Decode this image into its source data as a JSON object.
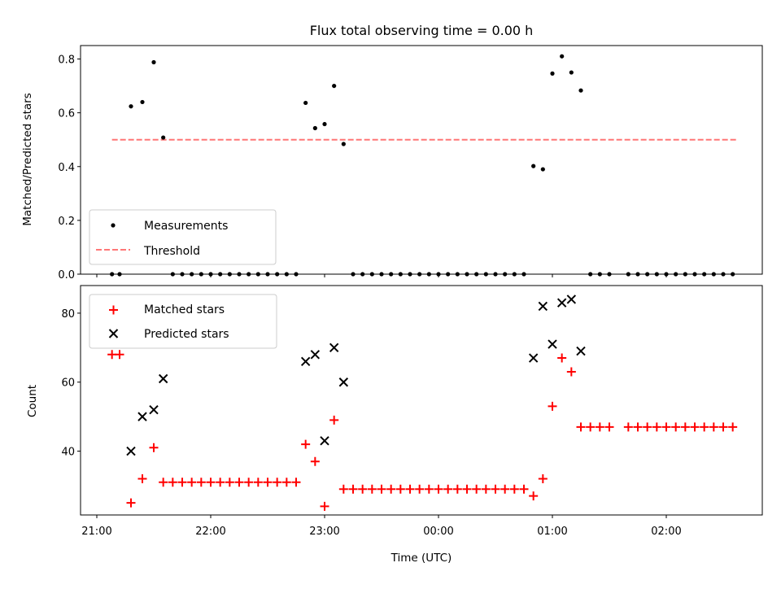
{
  "chart_data": [
    {
      "type": "scatter",
      "title": "Flux total observing time = 0.00 h",
      "xlabel": "",
      "ylabel": "Matched/Predicted stars",
      "ylim": [
        0,
        0.85
      ],
      "yticks": [
        "0.0",
        "0.2",
        "0.4",
        "0.6",
        "0.8"
      ],
      "legend_placement": "lower-left",
      "series": [
        {
          "name": "Measurements",
          "color": "#000000",
          "marker": "dot",
          "x": [
            "21:08",
            "21:12",
            "21:18",
            "21:24",
            "21:30",
            "21:35",
            "21:40",
            "21:45",
            "21:50",
            "21:55",
            "22:00",
            "22:05",
            "22:10",
            "22:15",
            "22:20",
            "22:25",
            "22:30",
            "22:35",
            "22:40",
            "22:45",
            "22:50",
            "22:55",
            "23:00",
            "23:05",
            "23:10",
            "23:15",
            "23:20",
            "23:25",
            "23:30",
            "23:35",
            "23:40",
            "23:45",
            "23:50",
            "23:55",
            "00:00",
            "00:05",
            "00:10",
            "00:15",
            "00:20",
            "00:25",
            "00:30",
            "00:35",
            "00:40",
            "00:45",
            "00:50",
            "00:55",
            "01:00",
            "01:05",
            "01:10",
            "01:15",
            "01:20",
            "01:25",
            "01:30",
            "01:40",
            "01:45",
            "01:50",
            "01:55",
            "02:00",
            "02:05",
            "02:10",
            "02:15",
            "02:20",
            "02:25",
            "02:30",
            "02:35"
          ],
          "y": [
            0,
            0,
            0.624,
            0.64,
            0.788,
            0.508,
            0,
            0,
            0,
            0,
            0,
            0,
            0,
            0,
            0,
            0,
            0,
            0,
            0,
            0,
            0.637,
            0.543,
            0.558,
            0.7,
            0.484,
            0,
            0,
            0,
            0,
            0,
            0,
            0,
            0,
            0,
            0,
            0,
            0,
            0,
            0,
            0,
            0,
            0,
            0,
            0,
            0.402,
            0.39,
            0.746,
            0.81,
            0.75,
            0.683,
            0,
            0,
            0,
            0,
            0,
            0,
            0,
            0,
            0,
            0,
            0,
            0,
            0,
            0,
            0
          ]
        },
        {
          "name": "Threshold",
          "color": "#ff7777",
          "style": "dashed",
          "x": [
            "21:08",
            "02:37"
          ],
          "y": [
            0.5,
            0.5
          ]
        }
      ]
    },
    {
      "type": "scatter",
      "title": "",
      "xlabel": "Time (UTC)",
      "ylabel": "Count",
      "ylim": [
        21.5,
        88
      ],
      "yticks": [
        "40",
        "60",
        "80"
      ],
      "xticks": [
        "21:00",
        "22:00",
        "23:00",
        "00:00",
        "01:00",
        "02:00"
      ],
      "legend_placement": "upper-left",
      "series": [
        {
          "name": "Matched stars",
          "color": "#ff0000",
          "marker": "plus",
          "x": [
            "21:08",
            "21:12",
            "21:18",
            "21:24",
            "21:30",
            "21:35",
            "21:40",
            "21:45",
            "21:50",
            "21:55",
            "22:00",
            "22:05",
            "22:10",
            "22:15",
            "22:20",
            "22:25",
            "22:30",
            "22:35",
            "22:40",
            "22:45",
            "22:50",
            "22:55",
            "23:00",
            "23:05",
            "23:10",
            "23:15",
            "23:20",
            "23:25",
            "23:30",
            "23:35",
            "23:40",
            "23:45",
            "23:50",
            "23:55",
            "00:00",
            "00:05",
            "00:10",
            "00:15",
            "00:20",
            "00:25",
            "00:30",
            "00:35",
            "00:40",
            "00:45",
            "00:50",
            "00:55",
            "01:00",
            "01:05",
            "01:10",
            "01:15",
            "01:20",
            "01:25",
            "01:30",
            "01:40",
            "01:45",
            "01:50",
            "01:55",
            "02:00",
            "02:05",
            "02:10",
            "02:15",
            "02:20",
            "02:25",
            "02:30",
            "02:35"
          ],
          "y": [
            68,
            68,
            25,
            32,
            41,
            31,
            31,
            31,
            31,
            31,
            31,
            31,
            31,
            31,
            31,
            31,
            31,
            31,
            31,
            31,
            42,
            37,
            24,
            49,
            29,
            29,
            29,
            29,
            29,
            29,
            29,
            29,
            29,
            29,
            29,
            29,
            29,
            29,
            29,
            29,
            29,
            29,
            29,
            29,
            27,
            32,
            53,
            67,
            63,
            47,
            47,
            47,
            47,
            47,
            47,
            47,
            47,
            47,
            47,
            47,
            47,
            47,
            47,
            47,
            47
          ]
        },
        {
          "name": "Predicted stars",
          "color": "#000000",
          "marker": "x",
          "x": [
            "21:18",
            "21:24",
            "21:30",
            "21:35",
            "22:50",
            "22:55",
            "23:00",
            "23:05",
            "23:10",
            "00:50",
            "00:55",
            "01:00",
            "01:05",
            "01:10",
            "01:15"
          ],
          "y": [
            40,
            50,
            52,
            61,
            66,
            68,
            43,
            70,
            60,
            67,
            82,
            71,
            83,
            84,
            69
          ]
        }
      ]
    }
  ]
}
